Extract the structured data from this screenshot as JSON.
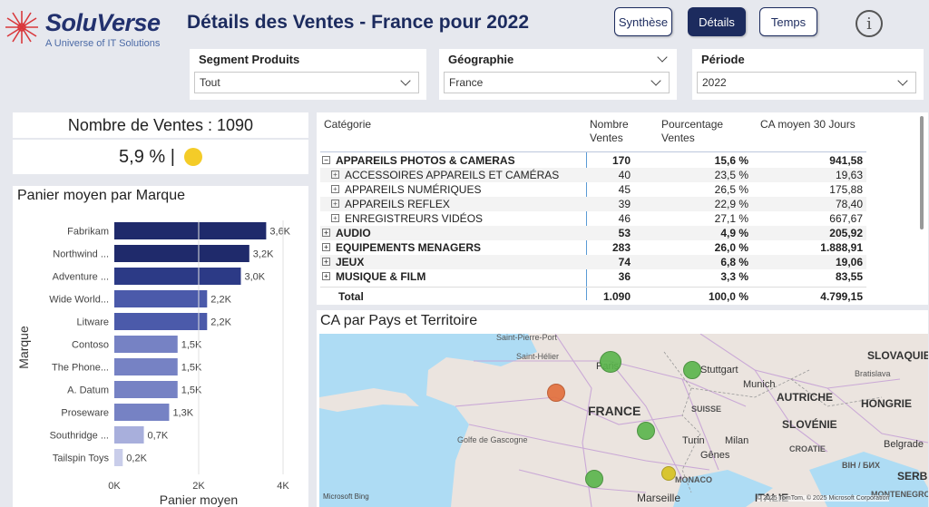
{
  "brand": {
    "name": "SoluVerse",
    "tagline": "A Universe of IT Solutions"
  },
  "page_title": "Détails des Ventes - France pour 2022",
  "nav": {
    "synthese": "Synthèse",
    "details": "Détails",
    "temps": "Temps",
    "info": "i"
  },
  "slicers": [
    {
      "label": "Segment Produits",
      "value": "Tout"
    },
    {
      "label": "Géographie",
      "value": "France"
    },
    {
      "label": "Période",
      "value": "2022"
    }
  ],
  "kpi": {
    "title": "Nombre de Ventes : 1090",
    "value": "5,9 % |",
    "status_color": "#f4cc28"
  },
  "bar_chart": {
    "title": "Panier moyen par Marque",
    "ylabel": "Marque",
    "xlabel": "Panier moyen",
    "ticks": [
      "0K",
      "2K",
      "4K"
    ],
    "xlim": [
      0,
      4000
    ]
  },
  "chart_data": {
    "type": "bar",
    "orientation": "horizontal",
    "title": "Panier moyen par Marque",
    "xlabel": "Panier moyen",
    "ylabel": "Marque",
    "categories": [
      "Fabrikam",
      "Northwind ...",
      "Adventure ...",
      "Wide World...",
      "Litware",
      "Contoso",
      "The Phone...",
      "A. Datum",
      "Proseware",
      "Southridge ...",
      "Tailspin Toys"
    ],
    "values": [
      3600,
      3200,
      3000,
      2200,
      2200,
      1500,
      1500,
      1500,
      1300,
      700,
      200
    ],
    "data_labels": [
      "3,6K",
      "3,2K",
      "3,0K",
      "2,2K",
      "2,2K",
      "1,5K",
      "1,5K",
      "1,5K",
      "1,3K",
      "0,7K",
      "0,2K"
    ],
    "colors": [
      "#1f2a6b",
      "#1f2a6b",
      "#2c3a86",
      "#4b5aaa",
      "#4b5aaa",
      "#7682c4",
      "#7682c4",
      "#7682c4",
      "#7682c4",
      "#a8afdc",
      "#c9cdea"
    ],
    "xlim": [
      0,
      4000
    ]
  },
  "table": {
    "headers": {
      "categorie": "Catégorie",
      "nombre": "Nombre Ventes",
      "pourcentage": "Pourcentage Ventes",
      "ca": "CA moyen 30 Jours"
    },
    "rows": [
      {
        "label": "APPAREILS PHOTOS & CAMERAS",
        "nombre": "170",
        "pct": "15,6 %",
        "ca": "941,58",
        "level": 0,
        "expanded": true
      },
      {
        "label": "ACCESSOIRES APPAREILS ET CAMÉRAS",
        "nombre": "40",
        "pct": "23,5 %",
        "ca": "19,63",
        "level": 1
      },
      {
        "label": "APPAREILS NUMÉRIQUES",
        "nombre": "45",
        "pct": "26,5 %",
        "ca": "175,88",
        "level": 1
      },
      {
        "label": "APPAREILS REFLEX",
        "nombre": "39",
        "pct": "22,9 %",
        "ca": "78,40",
        "level": 1
      },
      {
        "label": "ENREGISTREURS VIDÉOS",
        "nombre": "46",
        "pct": "27,1 %",
        "ca": "667,67",
        "level": 1
      },
      {
        "label": "AUDIO",
        "nombre": "53",
        "pct": "4,9 %",
        "ca": "205,92",
        "level": 0
      },
      {
        "label": "EQUIPEMENTS MENAGERS",
        "nombre": "283",
        "pct": "26,0 %",
        "ca": "1.888,91",
        "level": 0
      },
      {
        "label": "JEUX",
        "nombre": "74",
        "pct": "6,8 %",
        "ca": "19,06",
        "level": 0
      },
      {
        "label": "MUSIQUE & FILM",
        "nombre": "36",
        "pct": "3,3 %",
        "ca": "83,55",
        "level": 0
      }
    ],
    "total": {
      "label": "Total",
      "nombre": "1.090",
      "pct": "100,0 %",
      "ca": "4.799,15"
    },
    "expand_symbol": "+",
    "collapse_symbol": "−"
  },
  "map": {
    "title": "CA par Pays et Territoire",
    "labels": {
      "saint_pierre": "Saint-Pierre-Port",
      "saint_helier": "Saint-Hélier",
      "paris": "Paris",
      "stuttgart": "Stuttgart",
      "munich": "Munich",
      "slovaquie": "SLOVAQUIE",
      "bratislava": "Bratislava",
      "autriche": "AUTRICHE",
      "hongrie": "HONGRIE",
      "france": "FRANCE",
      "suisse": "SUISSE",
      "golfe": "Golfe de Gascogne",
      "turin": "Turin",
      "milan": "Milan",
      "genes": "Gênes",
      "slovenie": "SLOVÉNIE",
      "croatie": "CROATIE",
      "belgrade": "Belgrade",
      "bih": "BIH / БИХ",
      "serbie": "SERBI",
      "monaco": "MONACO",
      "marseille": "Marseille",
      "italie": "ITALIE",
      "montenegro": "MONTENEGRO"
    },
    "footer_left": "Microsoft Bing",
    "copyright": "© 2025 TomTom, © 2025 Microsoft Corporation"
  }
}
